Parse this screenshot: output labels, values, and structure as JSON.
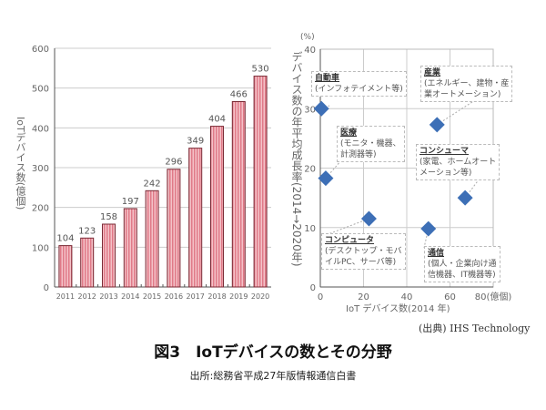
{
  "chart_data": [
    {
      "type": "bar",
      "title": "",
      "ylabel": "IoTデバイス数(億個)",
      "xlabel": "",
      "categories": [
        "2011",
        "2012",
        "2013",
        "2014",
        "2015",
        "2016",
        "2017",
        "2018",
        "2019",
        "2020"
      ],
      "values": [
        104,
        123,
        158,
        197,
        242,
        296,
        349,
        404,
        466,
        530
      ],
      "ylim": [
        0,
        600
      ],
      "yticks": [
        "0",
        "100",
        "200",
        "300",
        "400",
        "500",
        "600"
      ],
      "grid": true,
      "color": "#e8909a"
    },
    {
      "type": "scatter",
      "ylabel": "デバイス数の年平均成長率(2014→2020年)",
      "yunit": "(%)",
      "xlabel": "IoT デバイス数(2014 年)",
      "xunit": "(億個)",
      "xlim": [
        0,
        80
      ],
      "ylim": [
        0,
        40
      ],
      "xticks": [
        "0",
        "20",
        "40",
        "60",
        "80"
      ],
      "yticks": [
        "0",
        "10",
        "20",
        "30",
        "40"
      ],
      "grid": true,
      "color": "#3d6fb6",
      "points": [
        {
          "name": "自動車",
          "desc": [
            "(インフォテイメント等)"
          ],
          "x": 0.5,
          "y": 30
        },
        {
          "name": "産業",
          "desc": [
            "(エネルギー、建物・産",
            "業オートメーション)"
          ],
          "x": 54,
          "y": 27.3
        },
        {
          "name": "医療",
          "desc": [
            "(モニタ・機器、",
            "計測器等)"
          ],
          "x": 2.5,
          "y": 18.3
        },
        {
          "name": "コンシューマ",
          "desc": [
            "(家電、ホームオート",
            "メーション等)"
          ],
          "x": 67,
          "y": 15
        },
        {
          "name": "コンピュータ",
          "desc": [
            "(デスクトップ・モバ",
            "イルPC、サーバ等)"
          ],
          "x": 22.5,
          "y": 11.5
        },
        {
          "name": "通信",
          "desc": [
            "(個人・企業向け通",
            "信機器、IT機器等)"
          ],
          "x": 50,
          "y": 9.8
        }
      ]
    }
  ],
  "source": "(出典) IHS Technology",
  "figure_title": "図3　IoTデバイスの数とその分野",
  "subtitle": "出所:総務省平成27年版情報通信白書"
}
